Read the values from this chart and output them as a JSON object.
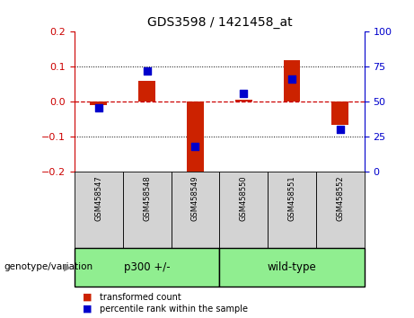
{
  "title": "GDS3598 / 1421458_at",
  "samples": [
    "GSM458547",
    "GSM458548",
    "GSM458549",
    "GSM458550",
    "GSM458551",
    "GSM458552"
  ],
  "red_values": [
    -0.01,
    0.06,
    -0.205,
    0.005,
    0.12,
    -0.065
  ],
  "blue_values_pct": [
    46,
    72,
    18,
    56,
    66,
    30
  ],
  "groups": [
    {
      "label": "p300 +/-",
      "color": "#90EE90",
      "start": 0,
      "end": 3
    },
    {
      "label": "wild-type",
      "color": "#90EE90",
      "start": 3,
      "end": 6
    }
  ],
  "sample_bg_color": "#d3d3d3",
  "ylim_left": [
    -0.2,
    0.2
  ],
  "ylim_right": [
    0,
    100
  ],
  "yticks_left": [
    -0.2,
    -0.1,
    0.0,
    0.1,
    0.2
  ],
  "yticks_right": [
    0,
    25,
    50,
    75,
    100
  ],
  "left_axis_color": "#cc0000",
  "right_axis_color": "#0000cc",
  "zero_line_color": "#cc0000",
  "bar_color": "#cc2200",
  "dot_color": "#0000cc",
  "legend_items": [
    "transformed count",
    "percentile rank within the sample"
  ],
  "genotype_label": "genotype/variation"
}
